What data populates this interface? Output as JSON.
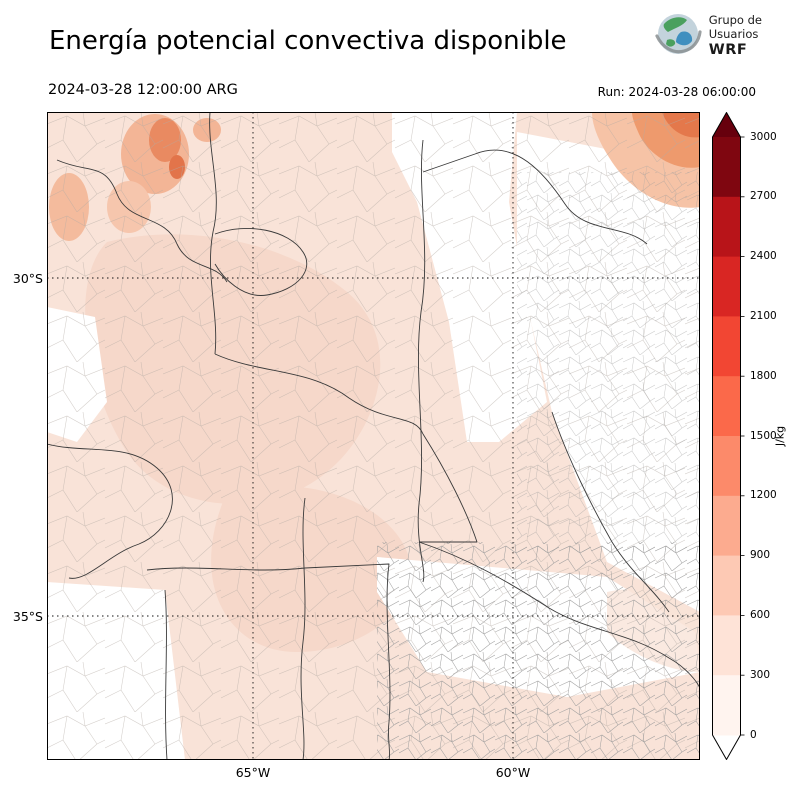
{
  "header": {
    "title": "Energía potencial convectiva disponible",
    "valid_time": "2024-03-28 12:00:00 ARG",
    "run_label": "Run: 2024-03-28 06:00:00",
    "logo": {
      "line1": "Grupo de",
      "line2": "Usuarios",
      "line3": "WRF"
    }
  },
  "map": {
    "lat_ticks": [
      "30°S",
      "35°S"
    ],
    "lon_ticks": [
      "65°W",
      "60°W"
    ]
  },
  "colorbar": {
    "label": "J/kg",
    "ticks": [
      "3000",
      "2700",
      "2400",
      "2100",
      "1800",
      "1500",
      "1200",
      "900",
      "600",
      "300",
      "0"
    ],
    "segment_colors_top_to_bottom": [
      "#7f0610",
      "#b81419",
      "#d92623",
      "#f24633",
      "#fb694a",
      "#fc8a6a",
      "#fcab8f",
      "#fdc9b4",
      "#fee3d7",
      "#fff4ef"
    ],
    "over_color": "#67000d",
    "under_color": "#ffffff"
  },
  "chart_data": {
    "type": "heatmap",
    "title": "Energía potencial convectiva disponible",
    "variable": "CAPE (convective available potential energy)",
    "units": "J/kg",
    "valid_time": "2024-03-28 12:00:00 ARG",
    "run_time": "2024-03-28 06:00:00",
    "model": "WRF (Grupo de Usuarios WRF)",
    "lat_gridlines": [
      "30°S",
      "35°S"
    ],
    "lon_gridlines": [
      "65°W",
      "60°W"
    ],
    "colorbar": {
      "label": "J/kg",
      "ticks": [
        0,
        300,
        600,
        900,
        1200,
        1500,
        1800,
        2100,
        2400,
        2700,
        3000
      ],
      "colormap": "Reds-like, discrete, with pointed over/under extensions"
    },
    "field_values_read_from_map": [
      {
        "area": "most of central and western Argentina (Córdoba, San Luis, La Rioja, Santiago del Estero)",
        "cape_jkg": "0-300"
      },
      {
        "area": "northwest patches near top-left edge (Catamarca/Tucumán)",
        "cape_jkg": "300-900"
      },
      {
        "area": "northeast corner of domain",
        "cape_jkg": "300-900"
      },
      {
        "area": "eastern strip (Santa Fe / Entre Ríos) and central Buenos Aires",
        "cape_jkg": "~0 (white)"
      },
      {
        "area": "southern Buenos Aires coastal strip",
        "cape_jkg": "0-300"
      }
    ],
    "legend_position": "right vertical colorbar",
    "grid": "dotted lat/lon gridlines"
  }
}
